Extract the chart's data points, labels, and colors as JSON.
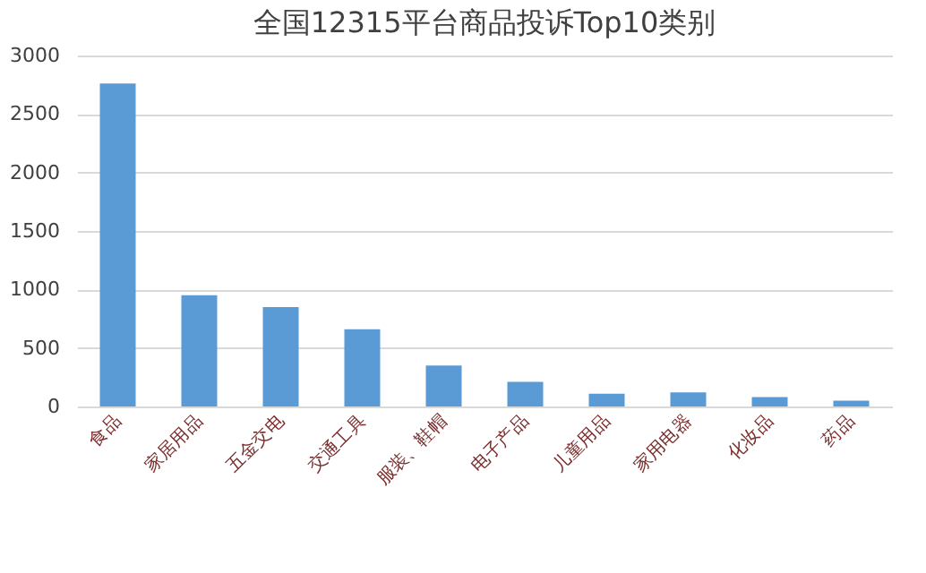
{
  "chart_data": {
    "type": "bar",
    "title": "全国12315平台商品投诉Top10类别",
    "categories": [
      "食品",
      "家居用品",
      "五金交电",
      "交通工具",
      "服装、鞋帽",
      "电子产品",
      "儿童用品",
      "家用电器",
      "化妆品",
      "药品"
    ],
    "values": [
      2760,
      950,
      850,
      660,
      350,
      210,
      110,
      120,
      80,
      50
    ],
    "color": "#5b9bd5",
    "ylim": [
      0,
      3000
    ],
    "yticks": [
      0,
      500,
      1000,
      1500,
      2000,
      2500,
      3000
    ],
    "grid": "y"
  }
}
